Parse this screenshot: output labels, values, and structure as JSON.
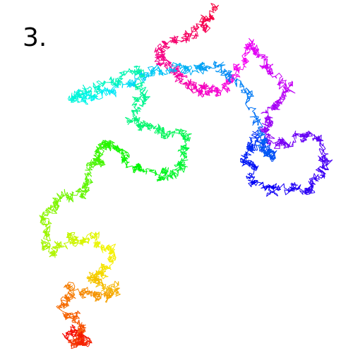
{
  "label": "3.",
  "colors": {
    "background": "#ffffff",
    "text": "#000000",
    "gradient": [
      "#ff0000",
      "#ff7f00",
      "#ffff00",
      "#7fff00",
      "#00ff00",
      "#00ffff",
      "#0000ff",
      "#7f00ff",
      "#ff00ff",
      "#ff0055"
    ]
  }
}
